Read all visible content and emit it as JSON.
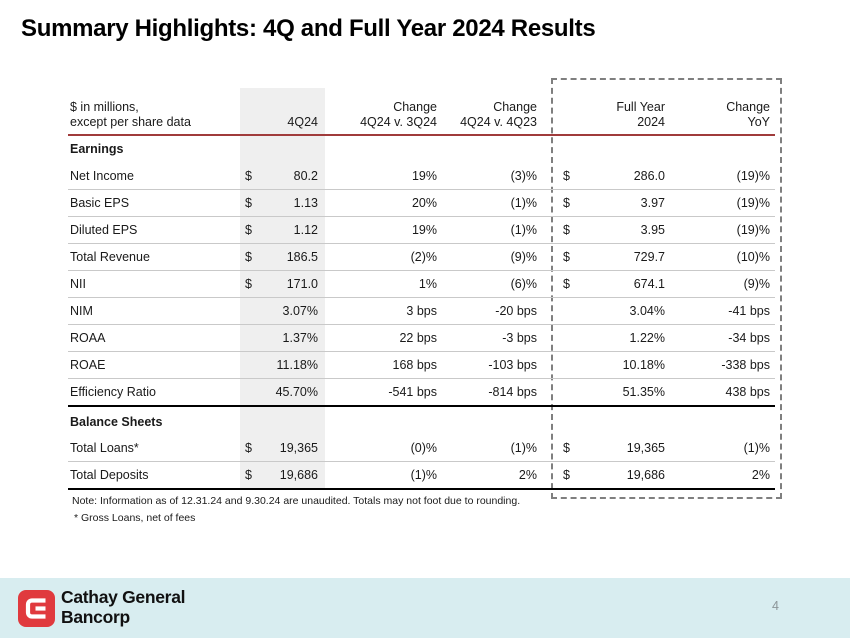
{
  "title": "Summary Highlights: 4Q and Full Year 2024 Results",
  "table": {
    "corner_header": [
      "$ in millions,",
      "except per share data"
    ],
    "col_headers": [
      {
        "line1": "",
        "line2": "4Q24"
      },
      {
        "line1": "Change",
        "line2": "4Q24 v. 3Q24"
      },
      {
        "line1": "Change",
        "line2": "4Q24 v. 4Q23"
      },
      {
        "line1": "Full Year",
        "line2": "2024"
      },
      {
        "line1": "Change",
        "line2": "YoY"
      }
    ],
    "sections": [
      {
        "label": "Earnings",
        "rows": [
          {
            "label": "Net Income",
            "d1": "$",
            "q4": "80.2",
            "c1": "19%",
            "c2": "(3)%",
            "d2": "$",
            "fy": "286.0",
            "yoy": "(19)%"
          },
          {
            "label": "Basic EPS",
            "d1": "$",
            "q4": "1.13",
            "c1": "20%",
            "c2": "(1)%",
            "d2": "$",
            "fy": "3.97",
            "yoy": "(19)%"
          },
          {
            "label": "Diluted EPS",
            "d1": "$",
            "q4": "1.12",
            "c1": "19%",
            "c2": "(1)%",
            "d2": "$",
            "fy": "3.95",
            "yoy": "(19)%"
          },
          {
            "label": "Total Revenue",
            "d1": "$",
            "q4": "186.5",
            "c1": "(2)%",
            "c2": "(9)%",
            "d2": "$",
            "fy": "729.7",
            "yoy": "(10)%"
          },
          {
            "label": "NII",
            "d1": "$",
            "q4": "171.0",
            "c1": "1%",
            "c2": "(6)%",
            "d2": "$",
            "fy": "674.1",
            "yoy": "(9)%"
          },
          {
            "label": "NIM",
            "d1": "",
            "q4": "3.07%",
            "c1": "3 bps",
            "c2": "-20 bps",
            "d2": "",
            "fy": "3.04%",
            "yoy": "-41 bps"
          },
          {
            "label": "ROAA",
            "d1": "",
            "q4": "1.37%",
            "c1": "22 bps",
            "c2": "-3 bps",
            "d2": "",
            "fy": "1.22%",
            "yoy": "-34 bps"
          },
          {
            "label": "ROAE",
            "d1": "",
            "q4": "11.18%",
            "c1": "168 bps",
            "c2": "-103 bps",
            "d2": "",
            "fy": "10.18%",
            "yoy": "-338 bps"
          },
          {
            "label": "Efficiency Ratio",
            "d1": "",
            "q4": "45.70%",
            "c1": "-541 bps",
            "c2": "-814 bps",
            "d2": "",
            "fy": "51.35%",
            "yoy": "438 bps"
          }
        ]
      },
      {
        "label": "Balance Sheets",
        "rows": [
          {
            "label": "Total Loans*",
            "d1": "$",
            "q4": "19,365",
            "c1": "(0)%",
            "c2": "(1)%",
            "d2": "$",
            "fy": "19,365",
            "yoy": "(1)%"
          },
          {
            "label": "Total Deposits",
            "d1": "$",
            "q4": "19,686",
            "c1": "(1)%",
            "c2": "2%",
            "d2": "$",
            "fy": "19,686",
            "yoy": "2%"
          }
        ]
      }
    ],
    "note": "Note: Information as of 12.31.24 and 9.30.24 are unaudited. Totals may not foot due to rounding.",
    "footnote": "* Gross Loans, net of fees"
  },
  "footer": {
    "company_line1": "Cathay General",
    "company_line2": "Bancorp",
    "page_number": "4"
  },
  "colors": {
    "accent_red": "#e03a3e",
    "rule_red": "#a03b3b",
    "footer_bg": "#d8edf0",
    "band_gray": "#efefef",
    "sep_gray": "#c9c9c9"
  }
}
